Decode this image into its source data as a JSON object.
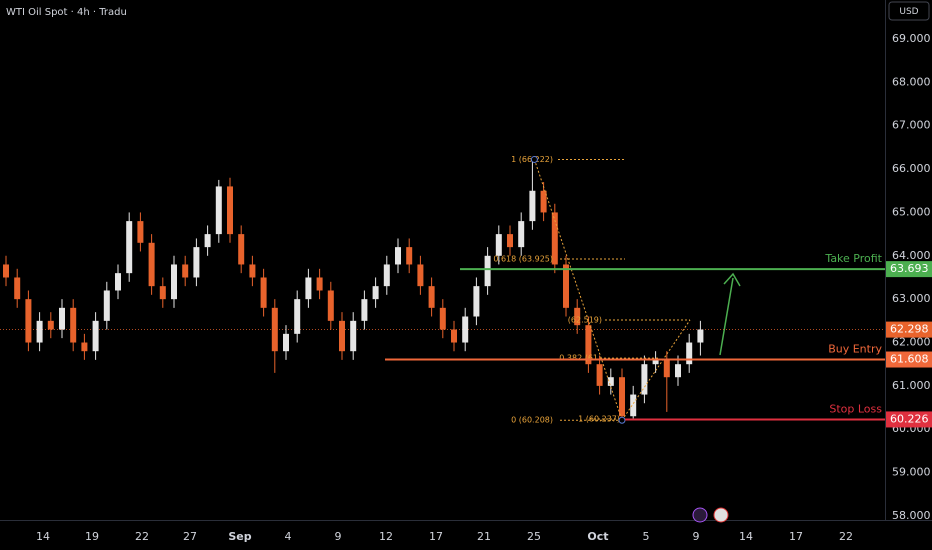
{
  "chart_data": {
    "type": "candlestick",
    "title": "WTI Oil Spot · 4h · Tradu",
    "currency": "USD",
    "ylim": [
      57.9,
      69.3
    ],
    "yticks": [
      {
        "value": 58,
        "label": "58.000"
      },
      {
        "value": 59,
        "label": "59.000"
      },
      {
        "value": 60,
        "label": "60.000"
      },
      {
        "value": 61,
        "label": "61.000"
      },
      {
        "value": 62,
        "label": "62.000"
      },
      {
        "value": 63,
        "label": "63.000"
      },
      {
        "value": 64,
        "label": "64.000"
      },
      {
        "value": 65,
        "label": "65.000"
      },
      {
        "value": 66,
        "label": "66.000"
      },
      {
        "value": 67,
        "label": "67.000"
      },
      {
        "value": 68,
        "label": "68.000"
      },
      {
        "value": 69,
        "label": "69.000"
      }
    ],
    "x_labels": [
      "14",
      "19",
      "22",
      "27",
      "Sep",
      "4",
      "9",
      "12",
      "17",
      "21",
      "25",
      "Oct",
      "5",
      "9",
      "14",
      "17",
      "22"
    ],
    "up_color": "#e6e6e6",
    "down_color": "#e8632c",
    "open": [
      63.8,
      63.5,
      63.0,
      62.0,
      62.5,
      62.3,
      62.8,
      62.0,
      61.8,
      62.5,
      63.2,
      63.6,
      64.8,
      64.3,
      63.3,
      63.0,
      63.8,
      63.5,
      64.2,
      64.5,
      65.6,
      64.5,
      63.8,
      63.5,
      62.8,
      61.8,
      62.2,
      63.0,
      63.5,
      63.2,
      62.5,
      61.8,
      62.5,
      63.0,
      63.3,
      63.8,
      64.2,
      63.8,
      63.3,
      62.8,
      62.3,
      62.0,
      62.6,
      63.3,
      64.0,
      64.5,
      64.2,
      64.8,
      65.5,
      65.0,
      63.8,
      62.8,
      62.4,
      61.5,
      61.0,
      61.2,
      60.3,
      60.8,
      61.5,
      61.6,
      61.2,
      61.5,
      62.0
    ],
    "high": [
      64.0,
      63.7,
      63.2,
      62.7,
      62.7,
      63.0,
      63.0,
      62.2,
      62.7,
      63.4,
      63.8,
      65.0,
      65.0,
      64.5,
      63.5,
      64.0,
      64.0,
      64.4,
      64.7,
      65.75,
      65.8,
      64.7,
      64.0,
      63.7,
      63.0,
      62.4,
      63.2,
      63.7,
      63.7,
      63.4,
      62.7,
      62.7,
      63.2,
      63.5,
      64.0,
      64.4,
      64.4,
      64.0,
      63.5,
      63.0,
      62.5,
      62.8,
      63.5,
      64.2,
      64.7,
      64.7,
      65.0,
      66.222,
      65.7,
      65.2,
      64.0,
      63.0,
      62.6,
      61.7,
      61.4,
      61.4,
      61.0,
      61.7,
      61.8,
      61.8,
      61.7,
      62.2,
      62.5
    ],
    "low": [
      63.3,
      62.8,
      61.8,
      61.8,
      62.1,
      62.1,
      61.8,
      61.6,
      61.6,
      62.3,
      63.0,
      63.4,
      64.1,
      63.1,
      62.8,
      62.8,
      63.3,
      63.3,
      64.0,
      64.3,
      64.3,
      63.6,
      63.3,
      62.6,
      61.3,
      61.6,
      62.0,
      62.8,
      63.0,
      62.3,
      61.6,
      61.6,
      62.3,
      62.8,
      63.1,
      63.6,
      63.6,
      63.1,
      62.6,
      62.1,
      61.8,
      61.8,
      62.4,
      63.1,
      63.8,
      64.0,
      64.0,
      64.6,
      64.8,
      63.6,
      62.6,
      62.2,
      61.3,
      60.8,
      60.8,
      60.208,
      60.25,
      60.6,
      61.3,
      60.4,
      61.0,
      61.3,
      61.7
    ],
    "close": [
      63.5,
      63.0,
      62.0,
      62.5,
      62.3,
      62.8,
      62.0,
      61.8,
      62.5,
      63.2,
      63.6,
      64.8,
      64.3,
      63.3,
      63.0,
      63.8,
      63.5,
      64.2,
      64.5,
      65.6,
      64.5,
      63.8,
      63.5,
      62.8,
      61.8,
      62.2,
      63.0,
      63.5,
      63.2,
      62.5,
      61.8,
      62.5,
      63.0,
      63.3,
      63.8,
      64.2,
      63.8,
      63.3,
      62.8,
      62.3,
      62.0,
      62.6,
      63.3,
      64.0,
      64.5,
      64.2,
      64.8,
      65.5,
      65.0,
      63.8,
      62.8,
      62.4,
      61.5,
      61.0,
      61.2,
      60.3,
      60.8,
      61.5,
      61.6,
      61.2,
      61.5,
      62.0,
      62.3
    ],
    "current_price": 62.298,
    "current_color": "#e8632c",
    "levels": [
      {
        "label": "Take Profit",
        "value": 63.693,
        "color": "#4caf50"
      },
      {
        "label": "Buy Entry",
        "value": 61.608,
        "color": "#f0683a"
      },
      {
        "label": "Stop Loss",
        "value": 60.226,
        "color": "#e0303f"
      }
    ],
    "fib_labels": [
      {
        "text": "1 (66.222)",
        "value": 66.222
      },
      {
        "text": "0.618 (63.925)",
        "value": 63.925
      },
      {
        "text": "(62.519)",
        "value": 62.519
      },
      {
        "text": "0.382 (61",
        "value": 61.64
      },
      {
        "text": "0 (60.208)",
        "value": 60.208
      },
      {
        "text": "1 (60.237)",
        "value": 60.237
      }
    ],
    "fib_color": "#e8a33a"
  }
}
